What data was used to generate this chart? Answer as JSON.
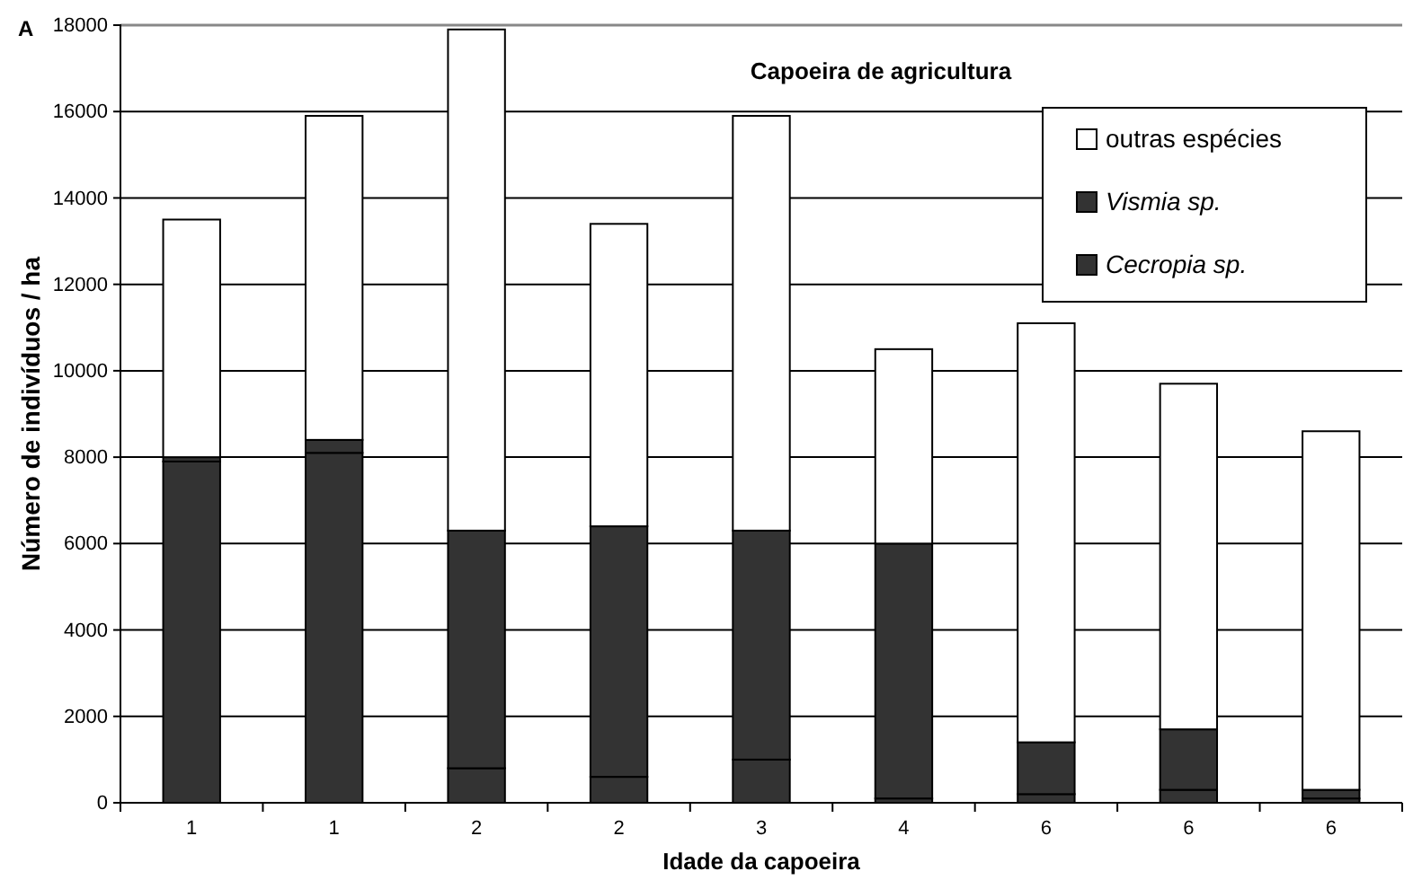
{
  "chart_data": {
    "type": "bar",
    "stacked": true,
    "title": "Capoeira de agricultura",
    "xlabel": "Idade da capoeira",
    "ylabel": "Número de indivíduos / ha",
    "annotations": [
      "A"
    ],
    "categories": [
      "1",
      "1",
      "2",
      "2",
      "3",
      "4",
      "6",
      "6",
      "6"
    ],
    "series": [
      {
        "name": "Cecropia sp.",
        "color": "#333333",
        "values": [
          7900,
          8100,
          800,
          600,
          1000,
          100,
          200,
          300,
          100
        ]
      },
      {
        "name": "Vismia sp.",
        "color": "#333333",
        "values": [
          100,
          300,
          5500,
          5800,
          5300,
          5900,
          1200,
          1400,
          200
        ]
      },
      {
        "name": "outras espécies",
        "color": "#ffffff",
        "values": [
          5500,
          7500,
          11600,
          7000,
          9600,
          4500,
          9700,
          8000,
          8300
        ]
      }
    ],
    "ylim": [
      0,
      18000
    ],
    "yticks": [
      0,
      2000,
      4000,
      6000,
      8000,
      10000,
      12000,
      14000,
      16000,
      18000
    ],
    "grid": "y",
    "legend": "top right"
  }
}
